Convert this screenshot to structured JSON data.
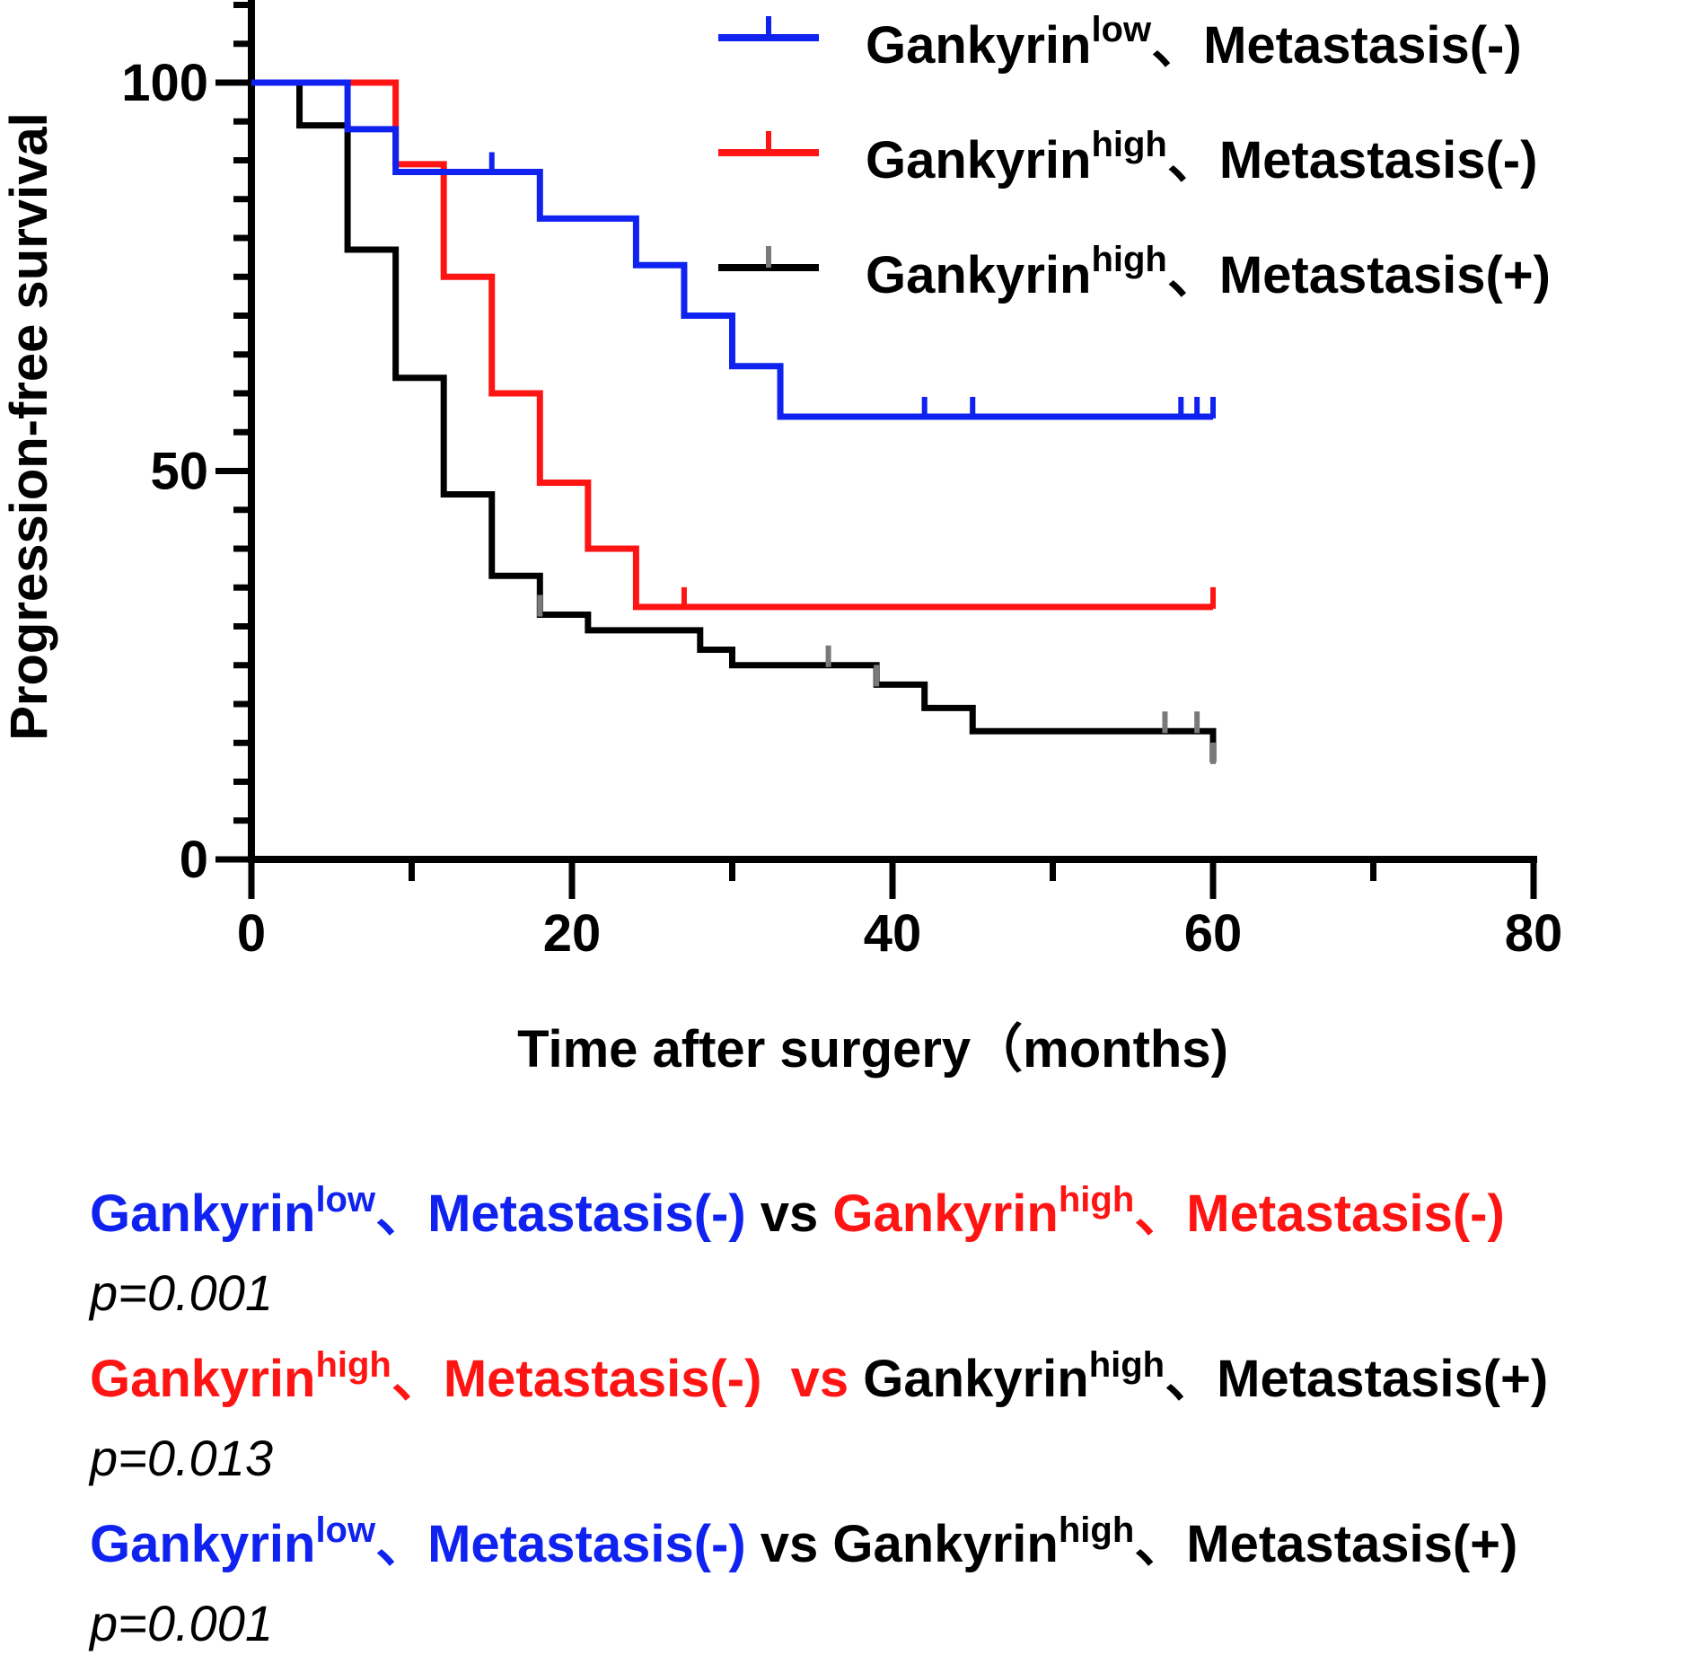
{
  "colors": {
    "blue": "#0f22f0",
    "red": "#ff1414",
    "black": "#000000",
    "censor_gray": "#7a7a7a"
  },
  "chart_data": {
    "type": "line",
    "subtype": "kaplan-meier step",
    "xlabel": "Time after surgery（months)",
    "ylabel": "Progression-free survival",
    "xlim": [
      0,
      80
    ],
    "ylim": [
      0,
      110
    ],
    "xticks": [
      "0",
      "20",
      "40",
      "60",
      "80"
    ],
    "xtick_values": [
      0,
      20,
      40,
      60,
      80
    ],
    "yticks": [
      "0",
      "50",
      "100"
    ],
    "ytick_values": [
      0,
      50,
      100
    ],
    "minor_ystep": 5,
    "minor_xstep": 10,
    "grid": false,
    "legend_position": "top-right",
    "series": [
      {
        "name": "Gankyrin low, Metastasis(-)",
        "legend_base": "Gankyrin",
        "legend_sup": "low",
        "legend_rest": "、Metastasis(-)",
        "color": "#0f22f0",
        "steps": [
          [
            0,
            100
          ],
          [
            6,
            94
          ],
          [
            9,
            88.5
          ],
          [
            18,
            82.5
          ],
          [
            24,
            76.5
          ],
          [
            27,
            70
          ],
          [
            30,
            63.5
          ],
          [
            33,
            57
          ],
          [
            60,
            57
          ]
        ],
        "censor": [
          [
            15,
            88.5
          ],
          [
            42,
            57
          ],
          [
            45,
            57
          ],
          [
            58,
            57
          ],
          [
            59,
            57
          ],
          [
            60,
            57
          ]
        ]
      },
      {
        "name": "Gankyrin high, Metastasis(-)",
        "legend_base": "Gankyrin",
        "legend_sup": "high",
        "legend_rest": "、Metastasis(-)",
        "color": "#ff1414",
        "steps": [
          [
            0,
            100
          ],
          [
            9,
            89.5
          ],
          [
            12,
            75
          ],
          [
            15,
            60
          ],
          [
            18,
            48.5
          ],
          [
            21,
            40
          ],
          [
            24,
            32.5
          ],
          [
            60,
            32.5
          ]
        ],
        "censor": [
          [
            27,
            32.5
          ],
          [
            60,
            32.5
          ]
        ]
      },
      {
        "name": "Gankyrin high, Metastasis(+)",
        "legend_base": "Gankyrin",
        "legend_sup": "high",
        "legend_rest": "、Metastasis(+)",
        "color": "#000000",
        "steps": [
          [
            0,
            100
          ],
          [
            3,
            94.5
          ],
          [
            6,
            78.5
          ],
          [
            9,
            62
          ],
          [
            12,
            47
          ],
          [
            15,
            36.5
          ],
          [
            18,
            31.5
          ],
          [
            21,
            29.5
          ],
          [
            28,
            27
          ],
          [
            30,
            25
          ],
          [
            39,
            22.5
          ],
          [
            42,
            19.5
          ],
          [
            45,
            16.5
          ],
          [
            60,
            16.5
          ],
          [
            60,
            12.5
          ]
        ],
        "censor": [
          [
            18,
            31.5
          ],
          [
            36,
            25
          ],
          [
            39,
            22.5
          ],
          [
            57,
            16.5
          ],
          [
            59,
            16.5
          ],
          [
            60,
            12.5
          ]
        ]
      }
    ]
  },
  "comparisons": [
    {
      "a": {
        "base": "Gankyrin",
        "sup": "low",
        "rest": "、Metastasis(-)",
        "color": "#0f22f0"
      },
      "vs": " vs ",
      "vs_color": "#000000",
      "b": {
        "base": "Gankyrin",
        "sup": "high",
        "rest": "、Metastasis(-)",
        "color": "#ff1414"
      },
      "p": "p=0.001"
    },
    {
      "a": {
        "base": "Gankyrin",
        "sup": "high",
        "rest": "、Metastasis(-)",
        "color": "#ff1414"
      },
      "vs": "  vs ",
      "vs_color": "#ff1414",
      "b": {
        "base": "Gankyrin",
        "sup": "high",
        "rest": "、Metastasis(+)",
        "color": "#000000"
      },
      "p": "p=0.013"
    },
    {
      "a": {
        "base": "Gankyrin",
        "sup": "low",
        "rest": "、Metastasis(-)",
        "color": "#0f22f0"
      },
      "vs": " vs ",
      "vs_color": "#000000",
      "b": {
        "base": "Gankyrin",
        "sup": "high",
        "rest": "、Metastasis(+)",
        "color": "#000000"
      },
      "p": "p=0.001"
    }
  ]
}
